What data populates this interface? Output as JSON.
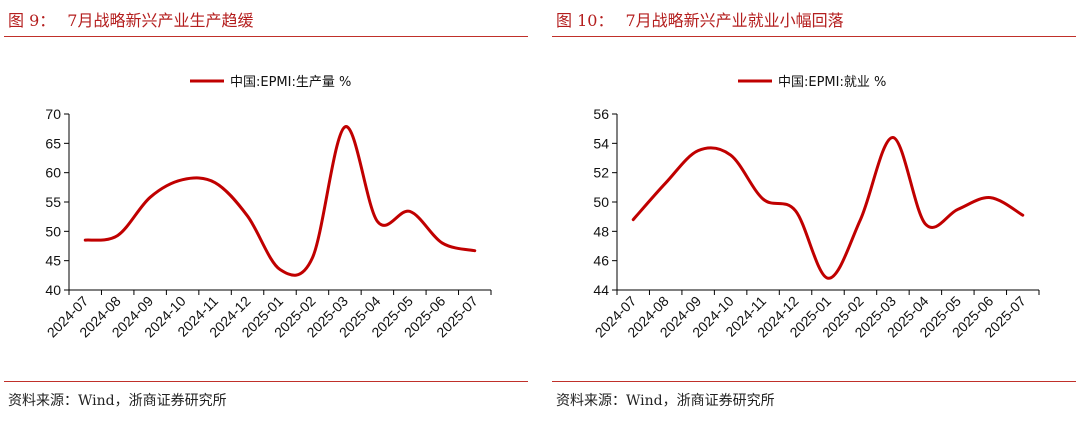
{
  "panels": [
    {
      "figure_label": "图 9：",
      "title": "7月战略新兴产业生产趋缓",
      "source": "资料来源：Wind，浙商证券研究所"
    },
    {
      "figure_label": "图 10：",
      "title": "7月战略新兴产业就业小幅回落",
      "source": "资料来源：Wind，浙商证券研究所"
    }
  ],
  "chart_data": [
    {
      "type": "line",
      "categories": [
        "2024-07",
        "2024-08",
        "2024-09",
        "2024-10",
        "2024-11",
        "2024-12",
        "2025-01",
        "2025-02",
        "2025-03",
        "2025-04",
        "2025-05",
        "2025-06",
        "2025-07"
      ],
      "series": [
        {
          "name": "中国:EPMI:生产量 %",
          "values": [
            48.5,
            49.3,
            55.8,
            58.8,
            58.3,
            52.6,
            43.5,
            45.5,
            67.8,
            51.7,
            53.4,
            48.0,
            46.7
          ]
        }
      ],
      "yticks": [
        40,
        45,
        50,
        55,
        60,
        65,
        70
      ],
      "ylim": [
        40,
        70
      ],
      "grid": false,
      "legend_position": "top-center",
      "color": "#c00000"
    },
    {
      "type": "line",
      "categories": [
        "2024-07",
        "2024-08",
        "2024-09",
        "2024-10",
        "2024-11",
        "2024-12",
        "2025-01",
        "2025-02",
        "2025-03",
        "2025-04",
        "2025-05",
        "2025-06",
        "2025-07"
      ],
      "series": [
        {
          "name": "中国:EPMI:就业 %",
          "values": [
            48.8,
            51.3,
            53.5,
            53.2,
            50.2,
            49.4,
            44.8,
            48.8,
            54.4,
            48.5,
            49.5,
            50.3,
            49.1
          ]
        }
      ],
      "yticks": [
        44,
        46,
        48,
        50,
        52,
        54,
        56
      ],
      "ylim": [
        44,
        56
      ],
      "grid": false,
      "legend_position": "top-center",
      "color": "#c00000"
    }
  ]
}
